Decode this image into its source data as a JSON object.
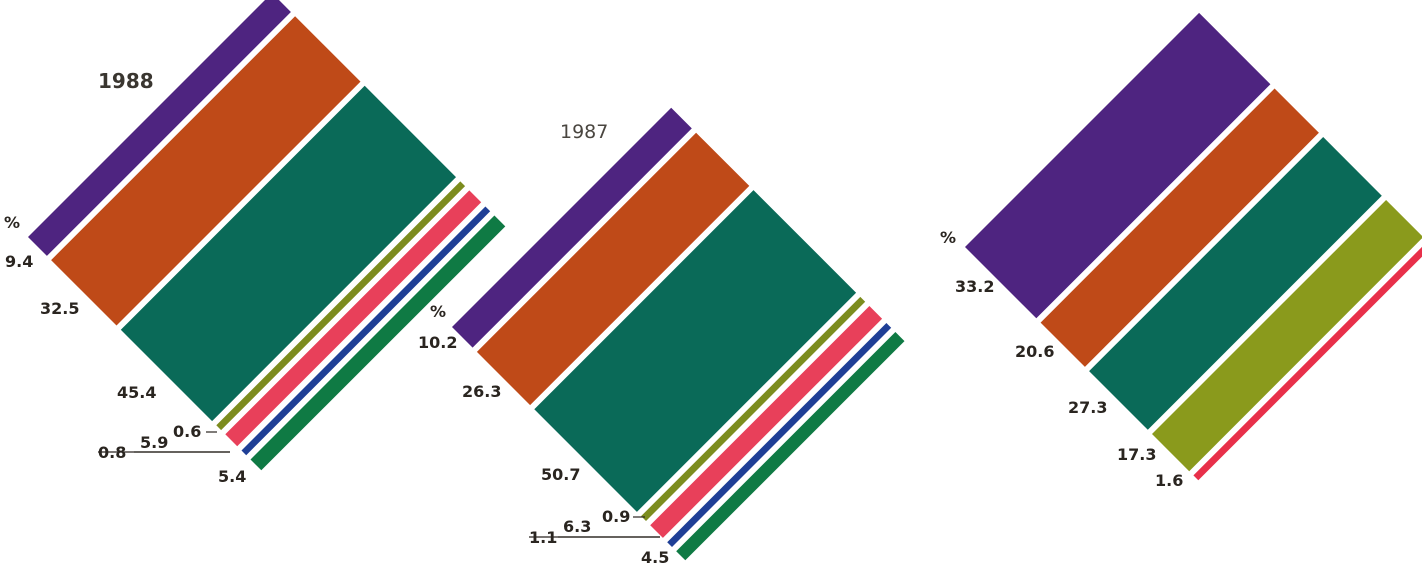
{
  "chart_data": [
    {
      "type": "bar",
      "title": "1988",
      "unit_label": "%",
      "segments": [
        {
          "value": 9.4,
          "label": "9.4",
          "color": "#4e2480"
        },
        {
          "value": 32.5,
          "label": "32.5",
          "color": "#bf4a18"
        },
        {
          "value": 45.4,
          "label": "45.4",
          "color": "#0a6a58"
        },
        {
          "value": 0.6,
          "label": "0.6",
          "color": "#7c8c1e"
        },
        {
          "value": 5.9,
          "label": "5.9",
          "color": "#e8405a"
        },
        {
          "value": 0.8,
          "label": "0.8",
          "color": "#1f3f96"
        },
        {
          "value": 5.4,
          "label": "5.4",
          "color": "#0f7a44"
        }
      ]
    },
    {
      "type": "bar",
      "title": "1987",
      "unit_label": "%",
      "segments": [
        {
          "value": 10.2,
          "label": "10.2",
          "color": "#4e2480"
        },
        {
          "value": 26.3,
          "label": "26.3",
          "color": "#bf4a18"
        },
        {
          "value": 50.7,
          "label": "50.7",
          "color": "#0a6a58"
        },
        {
          "value": 0.9,
          "label": "0.9",
          "color": "#7c8c1e"
        },
        {
          "value": 6.3,
          "label": "6.3",
          "color": "#e8405a"
        },
        {
          "value": 1.1,
          "label": "1.1",
          "color": "#1f3f96"
        },
        {
          "value": 4.5,
          "label": "4.5",
          "color": "#0f7a44"
        }
      ]
    },
    {
      "type": "bar",
      "title": "",
      "unit_label": "%",
      "segments": [
        {
          "value": 33.2,
          "label": "33.2",
          "color": "#4e2480"
        },
        {
          "value": 20.6,
          "label": "20.6",
          "color": "#bf4a18"
        },
        {
          "value": 27.3,
          "label": "27.3",
          "color": "#0a6a58"
        },
        {
          "value": 17.3,
          "label": "17.3",
          "color": "#8a9a1c"
        },
        {
          "value": 1.6,
          "label": "1.6",
          "color": "#e8304a"
        }
      ]
    }
  ]
}
